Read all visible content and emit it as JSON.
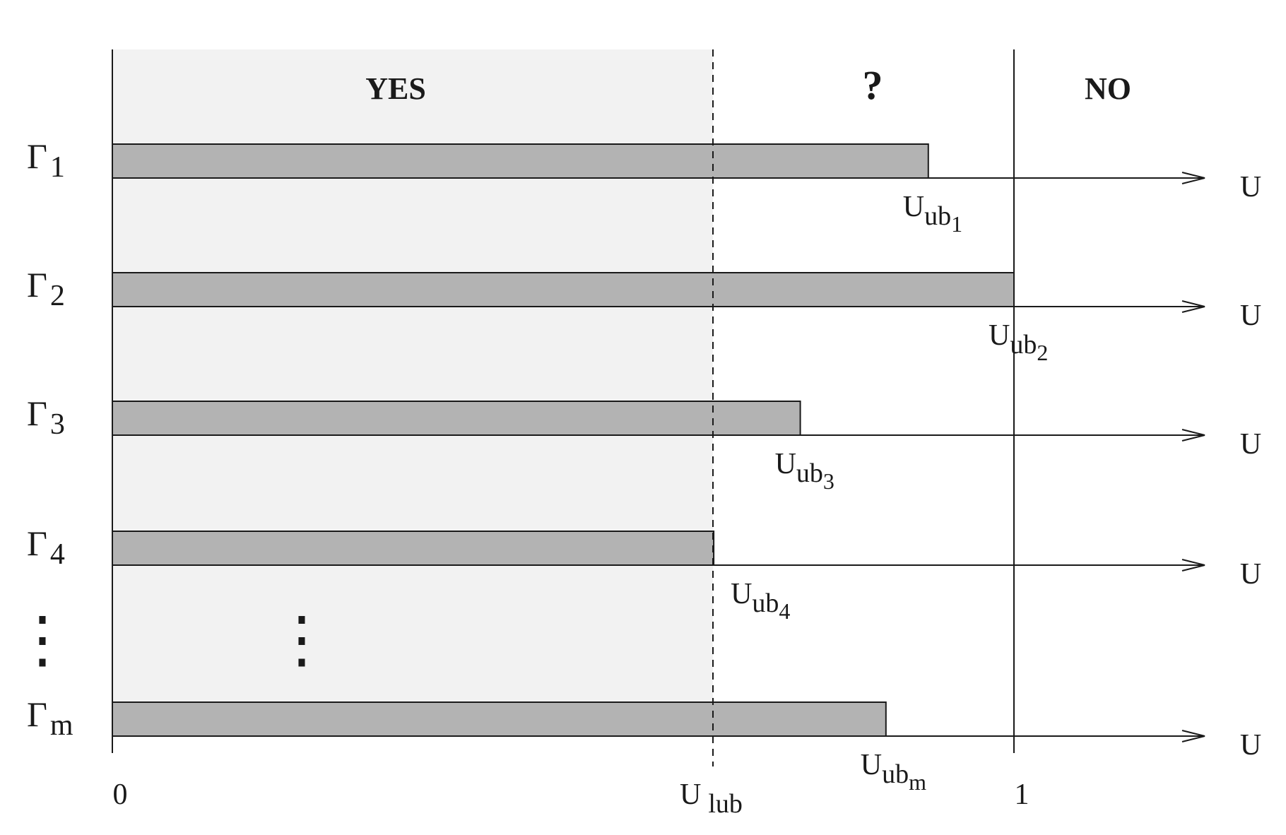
{
  "colors": {
    "yes_region": "#f2f2f2",
    "bar_fill": "#b3b3b3",
    "ink": "#1a1a1a"
  },
  "regions": {
    "yes_label": "YES",
    "uncertain_label": "?",
    "no_label": "NO"
  },
  "axis": {
    "origin_label": "0",
    "lub_label": "U",
    "lub_sub": "lub",
    "one_label": "1",
    "end_label": "U",
    "lub_value": 0.667,
    "max_value": 1.0
  },
  "tasks": [
    {
      "name": "Γ",
      "sub": "1",
      "value": 0.905,
      "ub_label": "U",
      "ub_sub": "ub",
      "ub_idx": "1"
    },
    {
      "name": "Γ",
      "sub": "2",
      "value": 1.0,
      "ub_label": "U",
      "ub_sub": "ub",
      "ub_idx": "2"
    },
    {
      "name": "Γ",
      "sub": "3",
      "value": 0.763,
      "ub_label": "U",
      "ub_sub": "ub",
      "ub_idx": "3"
    },
    {
      "name": "Γ",
      "sub": "4",
      "value": 0.667,
      "ub_label": "U",
      "ub_sub": "ub",
      "ub_idx": "4"
    },
    {
      "name": "Γ",
      "sub": "m",
      "value": 0.858,
      "ub_label": "U",
      "ub_sub": "ub",
      "ub_idx": "m"
    }
  ],
  "ellipsis": "⋮"
}
